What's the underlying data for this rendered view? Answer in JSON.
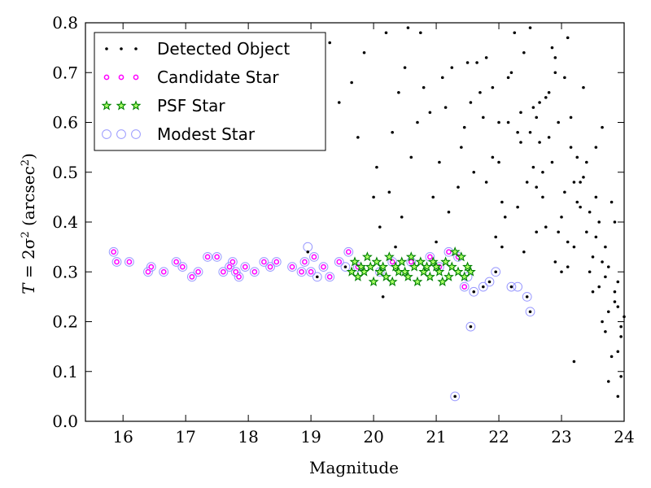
{
  "chart_data": {
    "type": "scatter",
    "xlabel": "Magnitude",
    "ylabel_parts": [
      "T",
      " = 2σ",
      "2",
      " (arcsec",
      "2",
      ")"
    ],
    "xlim": [
      15.4,
      24
    ],
    "ylim": [
      0.0,
      0.8
    ],
    "xticks": [
      16,
      17,
      18,
      19,
      20,
      21,
      22,
      23,
      24
    ],
    "yticks": [
      0.0,
      0.1,
      0.2,
      0.3,
      0.4,
      0.5,
      0.6,
      0.7,
      0.8
    ],
    "xtick_labels": [
      "16",
      "17",
      "18",
      "19",
      "20",
      "21",
      "22",
      "23",
      "24"
    ],
    "ytick_labels": [
      "0.0",
      "0.1",
      "0.2",
      "0.3",
      "0.4",
      "0.5",
      "0.6",
      "0.7",
      "0.8"
    ],
    "grid": false,
    "legend_position": "top-left",
    "series": [
      {
        "name": "Detected Object",
        "marker": "dot",
        "color": "#000000",
        "x": [
          18.95,
          19.1,
          19.55,
          20.15,
          20.35,
          21.3,
          21.55,
          21.6,
          21.75,
          21.85,
          21.95,
          22.2,
          22.45,
          22.5,
          22.6,
          22.7,
          22.85,
          23.0,
          23.1,
          23.3,
          23.5,
          23.7,
          23.85,
          23.95,
          20.0,
          20.3,
          20.55,
          20.9,
          21.1,
          21.4,
          21.65,
          21.8,
          21.9,
          22.05,
          22.15,
          22.3,
          22.4,
          22.55,
          22.65,
          22.75,
          22.8,
          22.9,
          23.05,
          23.15,
          23.25,
          23.35,
          23.45,
          23.55,
          23.65,
          23.75,
          23.8,
          23.9,
          24.0,
          19.3,
          19.45,
          19.85,
          20.05,
          20.25,
          20.45,
          20.6,
          20.75,
          20.95,
          21.15,
          21.25,
          21.45,
          21.7,
          21.9,
          22.1,
          22.25,
          22.35,
          22.5,
          22.6,
          22.8,
          22.95,
          23.1,
          23.2,
          23.35,
          23.55,
          23.65,
          23.85,
          23.95,
          19.05,
          19.75,
          20.1,
          20.5,
          20.7,
          21.0,
          21.35,
          21.5,
          21.75,
          22.0,
          22.2,
          22.4,
          22.55,
          22.7,
          22.85,
          23.0,
          23.25,
          23.4,
          23.6,
          23.75,
          23.9,
          19.65,
          20.2,
          20.8,
          21.2,
          21.6,
          21.95,
          22.15,
          22.45,
          22.65,
          22.9,
          23.1,
          23.3,
          23.5,
          23.7,
          23.9,
          20.4,
          21.05,
          21.55,
          22.05,
          22.35,
          22.6,
          22.95,
          23.2,
          23.45,
          23.65,
          23.85,
          22.3,
          22.75,
          23.15,
          23.55,
          23.8,
          22.5,
          23.05,
          23.6,
          23.95,
          21.8,
          22.0,
          22.9,
          23.4,
          23.75,
          23.2,
          23.7,
          23.9
        ],
        "y": [
          0.34,
          0.29,
          0.31,
          0.25,
          0.35,
          0.05,
          0.19,
          0.26,
          0.27,
          0.28,
          0.3,
          0.27,
          0.25,
          0.22,
          0.38,
          0.45,
          0.52,
          0.41,
          0.36,
          0.48,
          0.33,
          0.29,
          0.24,
          0.19,
          0.45,
          0.58,
          0.79,
          0.62,
          0.69,
          0.55,
          0.72,
          0.48,
          0.67,
          0.35,
          0.6,
          0.43,
          0.74,
          0.51,
          0.64,
          0.39,
          0.57,
          0.7,
          0.46,
          0.61,
          0.53,
          0.67,
          0.42,
          0.37,
          0.59,
          0.31,
          0.44,
          0.28,
          0.21,
          0.76,
          0.64,
          0.74,
          0.51,
          0.46,
          0.41,
          0.53,
          0.78,
          0.45,
          0.63,
          0.71,
          0.59,
          0.66,
          0.53,
          0.41,
          0.78,
          0.62,
          0.58,
          0.47,
          0.66,
          0.6,
          0.77,
          0.35,
          0.49,
          0.55,
          0.32,
          0.4,
          0.17,
          0.74,
          0.57,
          0.39,
          0.71,
          0.6,
          0.36,
          0.47,
          0.72,
          0.61,
          0.52,
          0.7,
          0.34,
          0.63,
          0.5,
          0.75,
          0.3,
          0.44,
          0.38,
          0.27,
          0.22,
          0.14,
          0.68,
          0.78,
          0.67,
          0.42,
          0.5,
          0.37,
          0.69,
          0.48,
          0.56,
          0.73,
          0.31,
          0.43,
          0.26,
          0.35,
          0.23,
          0.66,
          0.52,
          0.64,
          0.44,
          0.56,
          0.61,
          0.38,
          0.48,
          0.3,
          0.2,
          0.26,
          0.58,
          0.65,
          0.55,
          0.45,
          0.13,
          0.79,
          0.69,
          0.4,
          0.09,
          0.73,
          0.6,
          0.32,
          0.52,
          0.08,
          0.12,
          0.18,
          0.05
        ]
      },
      {
        "name": "Candidate Star",
        "marker": "small-magenta-circle",
        "color": "#ff00ff",
        "x": [
          15.85,
          15.9,
          16.1,
          16.4,
          16.45,
          16.65,
          16.85,
          16.95,
          17.1,
          17.2,
          17.35,
          17.5,
          17.6,
          17.7,
          17.75,
          17.8,
          17.85,
          17.95,
          18.1,
          18.25,
          18.35,
          18.45,
          18.7,
          18.85,
          18.9,
          19.0,
          19.05,
          19.2,
          19.3,
          19.45,
          19.6,
          19.75,
          20.1,
          20.3,
          20.6,
          20.9,
          21.05,
          21.2,
          21.35,
          21.45
        ],
        "y": [
          0.34,
          0.32,
          0.32,
          0.3,
          0.31,
          0.3,
          0.32,
          0.31,
          0.29,
          0.3,
          0.33,
          0.33,
          0.3,
          0.31,
          0.32,
          0.3,
          0.29,
          0.31,
          0.3,
          0.32,
          0.31,
          0.32,
          0.31,
          0.3,
          0.32,
          0.3,
          0.33,
          0.31,
          0.29,
          0.32,
          0.34,
          0.31,
          0.3,
          0.32,
          0.32,
          0.33,
          0.31,
          0.34,
          0.33,
          0.27
        ]
      },
      {
        "name": "PSF Star",
        "marker": "green-star",
        "color": "#008000",
        "x": [
          19.65,
          19.7,
          19.75,
          19.8,
          19.85,
          19.9,
          19.95,
          20.0,
          20.05,
          20.1,
          20.15,
          20.2,
          20.25,
          20.3,
          20.35,
          20.4,
          20.45,
          20.5,
          20.55,
          20.6,
          20.65,
          20.7,
          20.75,
          20.8,
          20.85,
          20.9,
          20.95,
          21.0,
          21.05,
          21.1,
          21.15,
          21.2,
          21.25,
          21.3,
          21.35,
          21.4,
          21.45,
          21.5,
          21.55
        ],
        "y": [
          0.3,
          0.32,
          0.29,
          0.31,
          0.3,
          0.33,
          0.31,
          0.28,
          0.32,
          0.3,
          0.31,
          0.29,
          0.33,
          0.28,
          0.31,
          0.3,
          0.32,
          0.3,
          0.29,
          0.33,
          0.31,
          0.28,
          0.32,
          0.3,
          0.31,
          0.29,
          0.32,
          0.31,
          0.3,
          0.28,
          0.32,
          0.29,
          0.31,
          0.34,
          0.3,
          0.33,
          0.29,
          0.31,
          0.3
        ]
      },
      {
        "name": "Modest Star",
        "marker": "blue-open-circle",
        "color": "#9999ff",
        "x": [
          15.85,
          15.9,
          16.1,
          16.4,
          16.45,
          16.65,
          16.85,
          16.95,
          17.1,
          17.2,
          17.35,
          17.5,
          17.6,
          17.7,
          17.75,
          17.8,
          17.85,
          17.95,
          18.1,
          18.25,
          18.35,
          18.45,
          18.7,
          18.85,
          18.9,
          18.95,
          19.0,
          19.05,
          19.1,
          19.2,
          19.3,
          19.45,
          19.55,
          19.6,
          19.75,
          20.1,
          20.3,
          20.6,
          20.9,
          21.05,
          21.2,
          21.35,
          21.45,
          21.3,
          21.5,
          21.55,
          21.6,
          21.75,
          21.85,
          21.95,
          22.2,
          22.3,
          22.45,
          22.5
        ],
        "y": [
          0.34,
          0.32,
          0.32,
          0.3,
          0.31,
          0.3,
          0.32,
          0.31,
          0.29,
          0.3,
          0.33,
          0.33,
          0.3,
          0.31,
          0.32,
          0.3,
          0.29,
          0.31,
          0.3,
          0.32,
          0.31,
          0.32,
          0.31,
          0.3,
          0.32,
          0.35,
          0.3,
          0.33,
          0.29,
          0.31,
          0.29,
          0.32,
          0.31,
          0.34,
          0.31,
          0.3,
          0.32,
          0.32,
          0.33,
          0.31,
          0.34,
          0.33,
          0.27,
          0.05,
          0.29,
          0.19,
          0.26,
          0.27,
          0.28,
          0.3,
          0.27,
          0.27,
          0.25,
          0.22
        ]
      }
    ]
  }
}
